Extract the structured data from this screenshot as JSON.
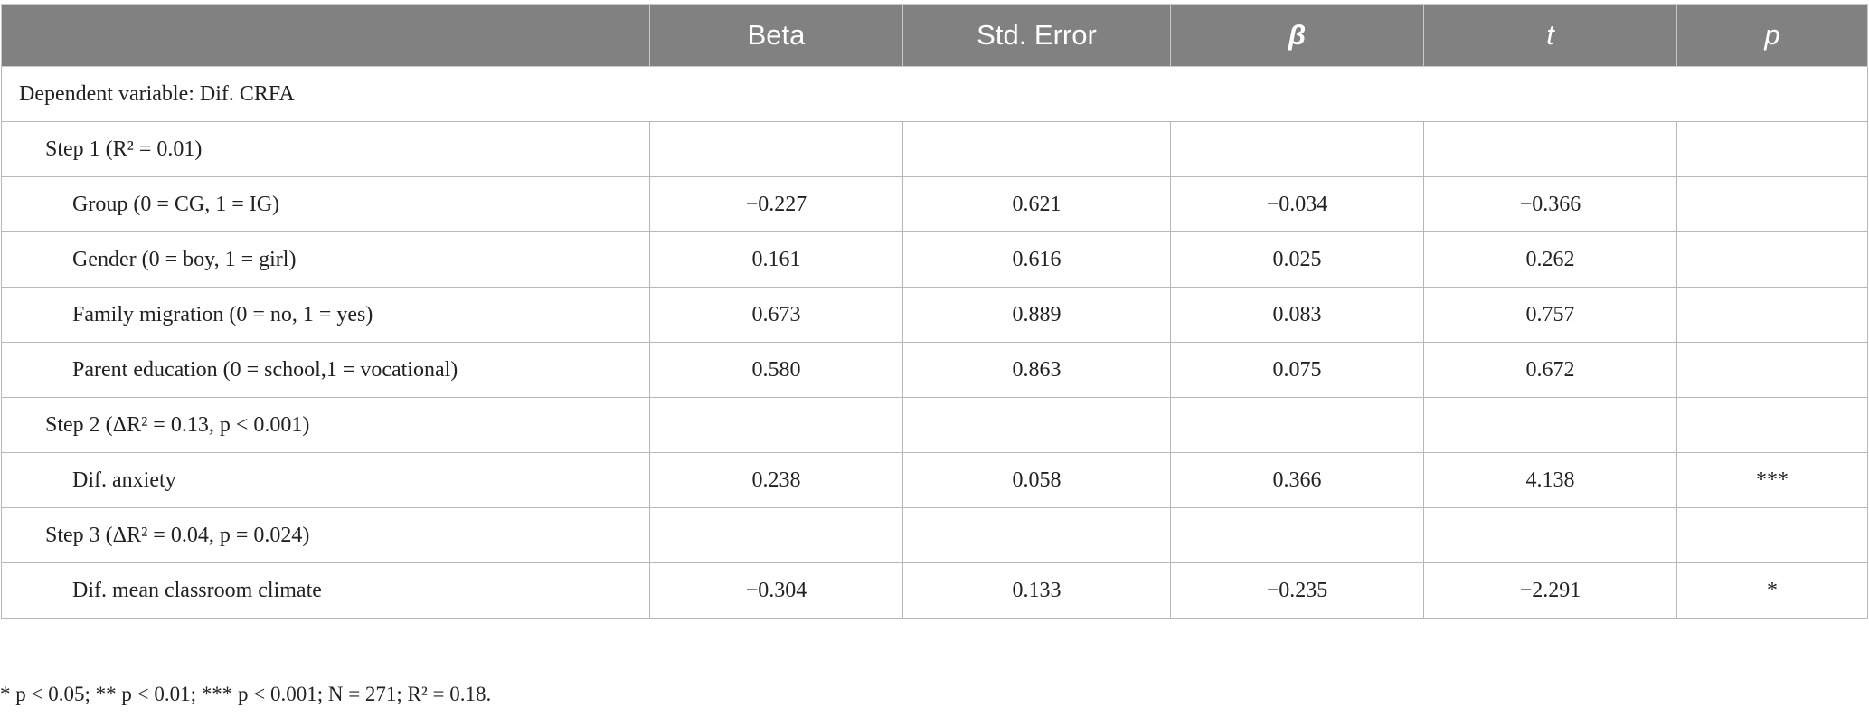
{
  "table": {
    "headers": [
      "",
      "Beta",
      "Std. Error",
      "β",
      "t",
      "p"
    ],
    "dependent_variable": "Dependent variable: Dif. CRFA",
    "step1": {
      "label": "Step 1 (R² = 0.01)",
      "rows": [
        {
          "label": "Group (0 = CG, 1 = IG)",
          "beta": "−0.227",
          "se": "0.621",
          "std_beta": "−0.034",
          "t": "−0.366",
          "p": ""
        },
        {
          "label": "Gender (0 = boy, 1 = girl)",
          "beta": "0.161",
          "se": "0.616",
          "std_beta": "0.025",
          "t": "0.262",
          "p": ""
        },
        {
          "label": "Family migration (0 = no, 1 = yes)",
          "beta": "0.673",
          "se": "0.889",
          "std_beta": "0.083",
          "t": "0.757",
          "p": ""
        },
        {
          "label": "Parent education (0 = school,1 = vocational)",
          "beta": "0.580",
          "se": "0.863",
          "std_beta": "0.075",
          "t": "0.672",
          "p": ""
        }
      ]
    },
    "step2": {
      "label": "Step 2 (ΔR² = 0.13, p < 0.001)",
      "rows": [
        {
          "label": "Dif. anxiety",
          "beta": "0.238",
          "se": "0.058",
          "std_beta": "0.366",
          "t": "4.138",
          "p": "***"
        }
      ]
    },
    "step3": {
      "label": "Step 3 (ΔR² = 0.04, p = 0.024)",
      "rows": [
        {
          "label": "Dif. mean classroom climate",
          "beta": "−0.304",
          "se": "0.133",
          "std_beta": "−0.235",
          "t": "−2.291",
          "p": "*"
        }
      ]
    }
  },
  "footnote": "* p < 0.05; ** p < 0.01; *** p < 0.001; N = 271; R² = 0.18."
}
